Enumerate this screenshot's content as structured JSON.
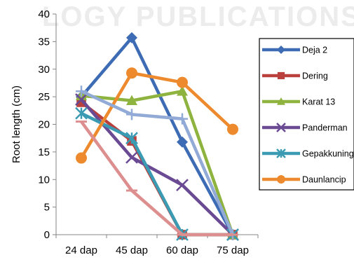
{
  "watermark_text": "LOGY PUBLICATIONS",
  "chart_data": {
    "type": "line",
    "title": "",
    "xlabel": "",
    "ylabel": "Root length (cm)",
    "ylim": [
      0,
      40
    ],
    "yticks": [
      0,
      5,
      10,
      15,
      20,
      25,
      30,
      35,
      40
    ],
    "categories": [
      "24 dap",
      "45 dap",
      "60 dap",
      "75 dap"
    ],
    "grid": false,
    "legend_placement": "right",
    "series": [
      {
        "name": "Deja 2",
        "color": "#3d6cb4",
        "marker": "diamond",
        "values": [
          25.0,
          35.7,
          16.8,
          0
        ]
      },
      {
        "name": "Dering",
        "color": "#b9403c",
        "marker": "square",
        "values": [
          24.0,
          17.0,
          0,
          0
        ]
      },
      {
        "name": "Karat 13",
        "color": "#8fb33f",
        "marker": "triangle",
        "values": [
          25.2,
          24.3,
          26.0,
          0
        ]
      },
      {
        "name": "Panderman",
        "color": "#6a4a92",
        "marker": "x",
        "values": [
          24.5,
          14.0,
          9.0,
          0
        ]
      },
      {
        "name": "Gepakkuning",
        "color": "#3b9bb2",
        "marker": "star",
        "values": [
          22.0,
          17.5,
          0,
          0
        ]
      },
      {
        "name": "Daunlancip",
        "color": "#ee8a2e",
        "marker": "circle",
        "values": [
          13.9,
          29.3,
          27.6,
          19.1
        ]
      },
      {
        "name": "",
        "color": "#92aad6",
        "marker": "plus",
        "values": [
          26.0,
          21.8,
          21.0,
          0
        ]
      },
      {
        "name": "",
        "color": "#dd8f8f",
        "marker": "dash",
        "values": [
          20.5,
          8.0,
          0,
          0
        ]
      }
    ]
  }
}
